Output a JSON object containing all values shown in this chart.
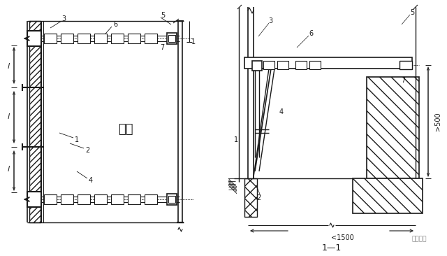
{
  "bg_color": "#ffffff",
  "line_color": "#1a1a1a",
  "fig_width": 6.4,
  "fig_height": 3.66,
  "dpi": 100,
  "label_jiegou": "结构",
  "label_1_1": "1—1",
  "label_500": ">500",
  "label_1500": "<1500",
  "watermark": "豆丁施工"
}
